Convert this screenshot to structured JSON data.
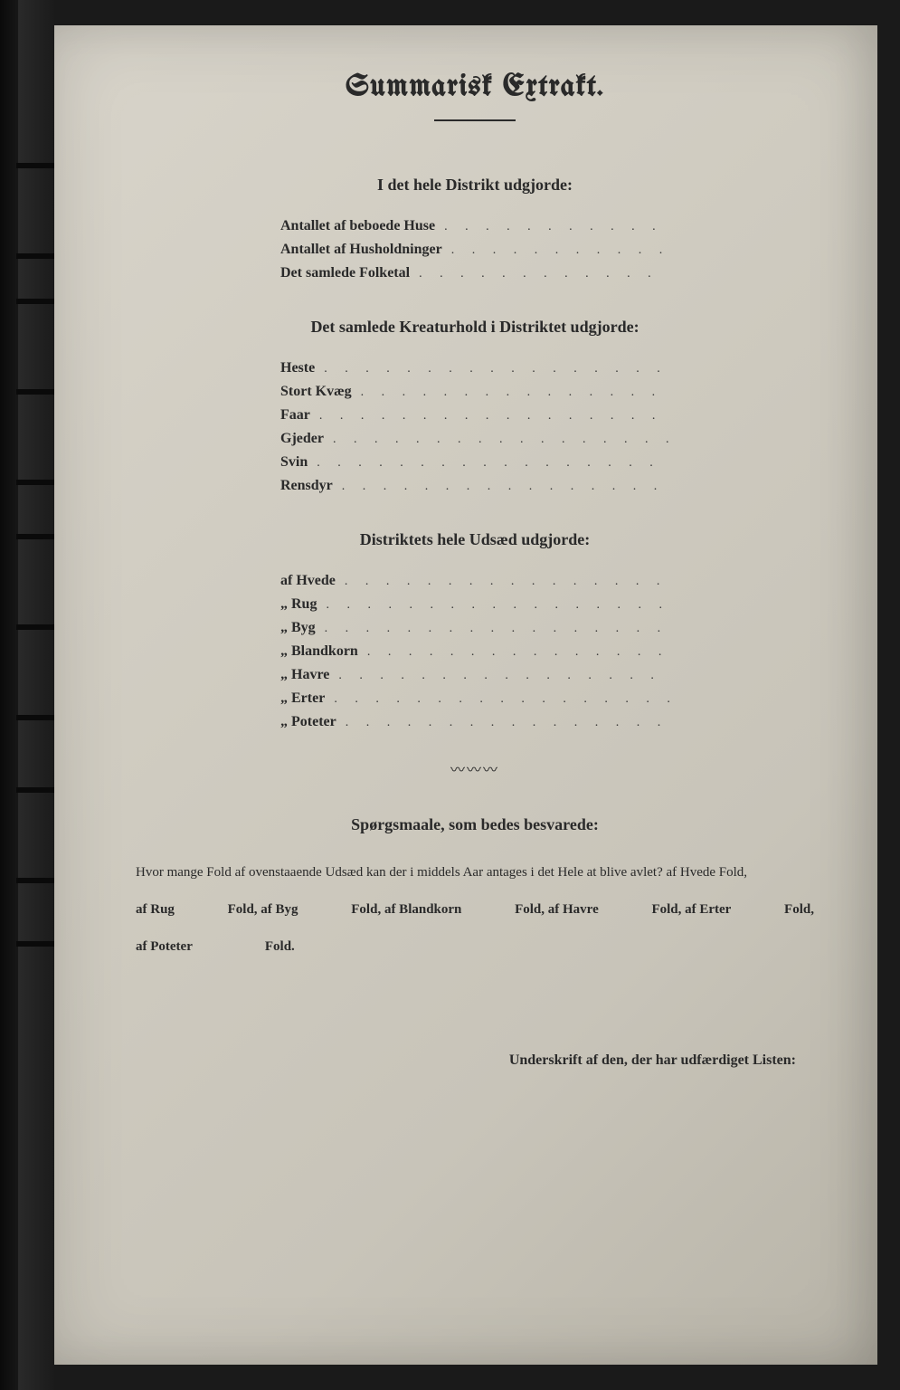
{
  "title": "Summarisk Extrakt.",
  "section1": {
    "heading": "I det hele Distrikt udgjorde:",
    "rows": [
      "Antallet af beboede Huse",
      "Antallet af Husholdninger",
      "Det samlede Folketal"
    ]
  },
  "section2": {
    "heading": "Det samlede Kreaturhold i Distriktet udgjorde:",
    "rows": [
      "Heste",
      "Stort Kvæg",
      "Faar",
      "Gjeder",
      "Svin",
      "Rensdyr"
    ]
  },
  "section3": {
    "heading": "Distriktets hele Udsæd udgjorde:",
    "rows": [
      "af Hvede",
      "„  Rug",
      "„  Byg",
      "„  Blandkorn",
      "„  Havre",
      "„  Erter",
      "„  Poteter"
    ]
  },
  "questions": {
    "heading": "Spørgsmaale, som bedes besvarede:",
    "line1": "Hvor mange Fold af ovenstaaende Udsæd kan der i middels Aar antages i det Hele at blive avlet?   af Hvede            Fold,",
    "fold_items_row1": [
      "af Rug",
      "Fold, af Byg",
      "Fold, af Blandkorn",
      "Fold, af Havre",
      "Fold, af Erter",
      "Fold,"
    ],
    "fold_items_row2": [
      "af Poteter",
      "Fold."
    ]
  },
  "signature": "Underskrift af den, der har udfærdiget Listen:",
  "colors": {
    "paper_light": "#d8d4ca",
    "paper_dark": "#b8b4a8",
    "ink": "#2a2a2a",
    "spine": "#0a0a0a"
  },
  "tick_positions": [
    180,
    280,
    330,
    430,
    530,
    590,
    690,
    790,
    870,
    970,
    1040
  ]
}
